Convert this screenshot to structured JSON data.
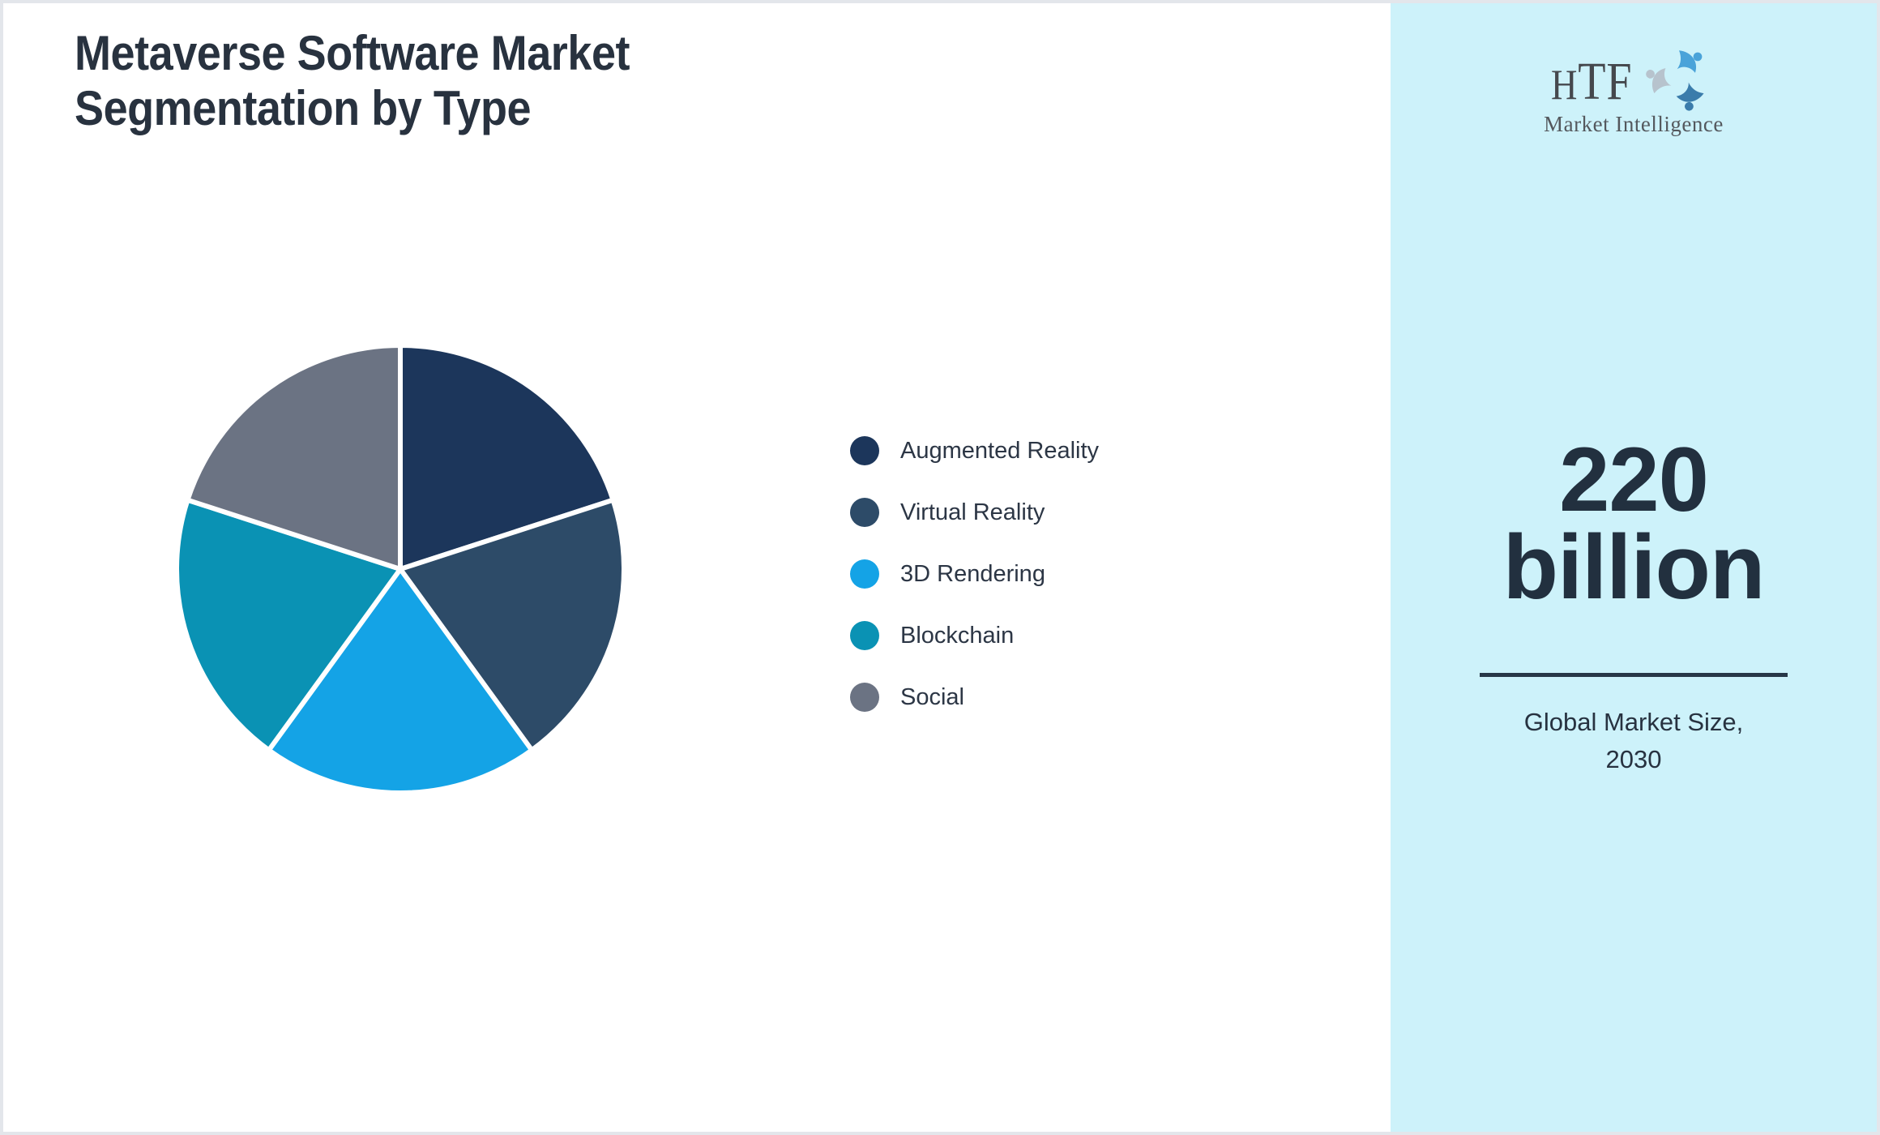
{
  "title": {
    "line1": "Metaverse Software Market",
    "line2": "Segmentation by Type"
  },
  "logo": {
    "text": "HTF",
    "tagline": "Market Intelligence",
    "swirl_colors": [
      "#4aa3d9",
      "#3a7cab",
      "#b7c3cd"
    ]
  },
  "sidebar": {
    "background": "#cdf2fa",
    "stat": {
      "value_line1": "220",
      "value_line2": "billion",
      "label_line1": "Global Market Size,",
      "label_line2": "2030"
    }
  },
  "chart_data": {
    "type": "pie",
    "title": "Metaverse Software Market Segmentation by Type",
    "categories": [
      "Augmented Reality",
      "Virtual Reality",
      "3D Rendering",
      "Blockchain",
      "Social"
    ],
    "values": [
      20,
      20,
      20,
      20,
      20
    ],
    "unit": "percent-share (estimated equal slices)",
    "colors": [
      "#1c365b",
      "#2d4b68",
      "#14a3e6",
      "#0a92b4",
      "#6b7383"
    ],
    "start_angle_deg": 0,
    "direction": "clockwise",
    "slice_border_color": "#ffffff",
    "slice_border_width": 6,
    "legend_position": "right-center",
    "data_labels_shown": false
  }
}
